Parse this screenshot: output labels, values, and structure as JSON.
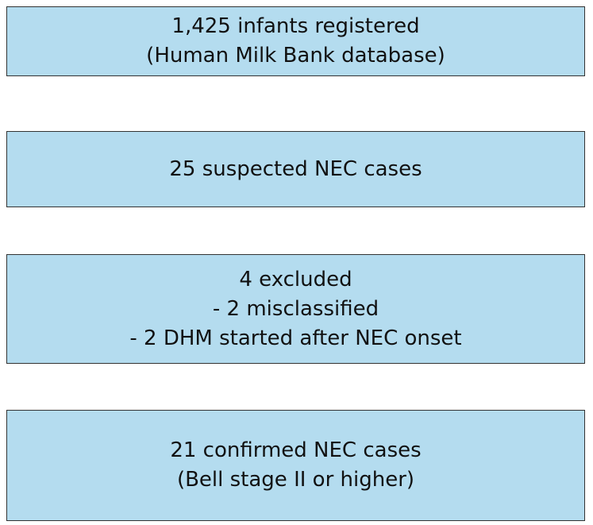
{
  "nodes": [
    {
      "lines": [
        "1,425 infants registered",
        "(Human Milk Bank database)"
      ]
    },
    {
      "lines": [
        "25 suspected NEC cases"
      ]
    },
    {
      "lines": [
        "4 excluded",
        "- 2 misclassified",
        "- 2 DHM started after NEC onset"
      ]
    },
    {
      "lines": [
        "21 confirmed NEC cases",
        "(Bell stage II or higher)"
      ]
    }
  ]
}
